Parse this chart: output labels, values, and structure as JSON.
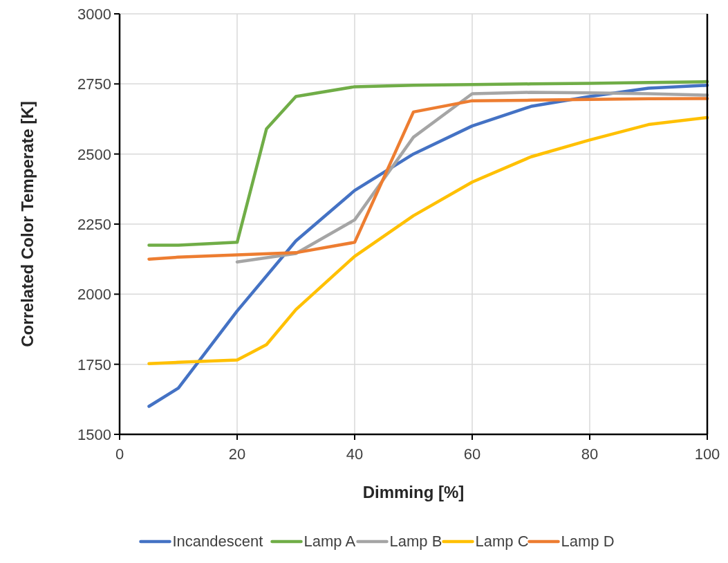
{
  "chart_data": {
    "type": "line",
    "xlabel": "Dimming [%]",
    "ylabel": "Correlated Color Temperate [K]",
    "xlim": [
      0,
      100
    ],
    "xticks": [
      0,
      20,
      40,
      60,
      80,
      100
    ],
    "ylim": [
      1500,
      3000
    ],
    "yticks": [
      1500,
      1750,
      2000,
      2250,
      2500,
      2750,
      3000
    ],
    "grid": true,
    "legend": "bottom",
    "marker": "none",
    "series": [
      {
        "name": "Incandescent",
        "color": "#4472c4",
        "x": [
          5,
          10,
          20,
          30,
          40,
          50,
          60,
          70,
          80,
          90,
          100
        ],
        "values": [
          1600,
          1665,
          1940,
          2190,
          2370,
          2500,
          2600,
          2670,
          2705,
          2735,
          2745
        ]
      },
      {
        "name": "Lamp A",
        "color": "#70ad47",
        "x": [
          5,
          10,
          20,
          25,
          30,
          40,
          50,
          60,
          70,
          80,
          90,
          100
        ],
        "values": [
          2175,
          2175,
          2185,
          2590,
          2705,
          2740,
          2745,
          2748,
          2750,
          2752,
          2755,
          2758
        ]
      },
      {
        "name": "Lamp B",
        "color": "#a5a5a5",
        "x": [
          20,
          30,
          40,
          50,
          60,
          70,
          80,
          90,
          100
        ],
        "values": [
          2115,
          2145,
          2265,
          2560,
          2715,
          2720,
          2718,
          2715,
          2710
        ]
      },
      {
        "name": "Lamp C",
        "color": "#ffc000",
        "x": [
          5,
          10,
          20,
          25,
          30,
          40,
          50,
          60,
          70,
          80,
          90,
          100
        ],
        "values": [
          1752,
          1757,
          1765,
          1820,
          1945,
          2135,
          2280,
          2400,
          2490,
          2550,
          2605,
          2630
        ]
      },
      {
        "name": "Lamp D",
        "color": "#ed7d31",
        "x": [
          5,
          10,
          20,
          30,
          40,
          50,
          60,
          70,
          80,
          90,
          100
        ],
        "values": [
          2125,
          2132,
          2140,
          2148,
          2185,
          2650,
          2690,
          2692,
          2695,
          2697,
          2698
        ]
      }
    ]
  }
}
